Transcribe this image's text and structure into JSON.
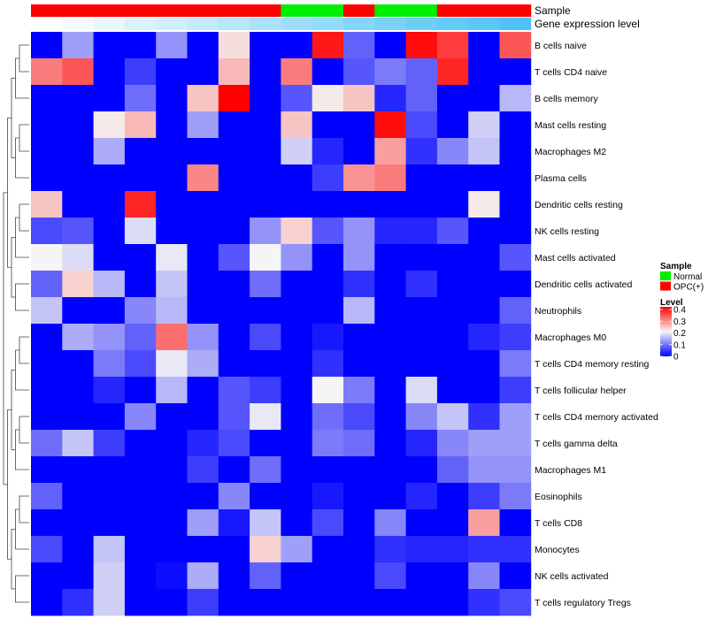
{
  "chart_data": {
    "type": "heatmap",
    "annotation_tracks": [
      {
        "name": "Sample",
        "values": [
          "OPC(+)",
          "OPC(+)",
          "OPC(+)",
          "OPC(+)",
          "OPC(+)",
          "OPC(+)",
          "OPC(+)",
          "OPC(+)",
          "Normal",
          "Normal",
          "OPC(+)",
          "Normal",
          "Normal",
          "OPC(+)",
          "OPC(+)",
          "OPC(+)"
        ]
      },
      {
        "name": "Gene expression level",
        "values": [
          0.0,
          0.02,
          0.04,
          0.07,
          0.09,
          0.11,
          0.14,
          0.16,
          0.18,
          0.2,
          0.23,
          0.25,
          0.27,
          0.29,
          0.31,
          0.33
        ]
      }
    ],
    "rows": [
      "B cells naive",
      "T cells CD4 naive",
      "B cells memory",
      "Mast cells resting",
      "Macrophages M2",
      "Plasma cells",
      "Dendritic cells resting",
      "NK cells resting",
      "Mast cells activated",
      "Dendritic cells activated",
      "Neutrophils",
      "Macrophages M0",
      "T cells CD4 memory resting",
      "T cells follicular helper",
      "T cells CD4 memory activated",
      "T cells gamma delta",
      "Macrophages M1",
      "Eosinophils",
      "T cells CD8",
      "Monocytes",
      "NK cells activated",
      "T cells regulatory  Tregs"
    ],
    "columns": 16,
    "values": [
      [
        0.0,
        0.13,
        0.0,
        0.0,
        0.12,
        0.0,
        0.22,
        0.0,
        0.0,
        0.38,
        0.08,
        0.0,
        0.39,
        0.35,
        0.0,
        0.33
      ],
      [
        0.3,
        0.33,
        0.0,
        0.05,
        0.0,
        0.0,
        0.25,
        0.0,
        0.3,
        0.0,
        0.07,
        0.1,
        0.08,
        0.37,
        0.0,
        0.0
      ],
      [
        0.0,
        0.0,
        0.0,
        0.09,
        0.0,
        0.24,
        0.4,
        0.0,
        0.07,
        0.21,
        0.24,
        0.03,
        0.08,
        0.0,
        0.0,
        0.15
      ],
      [
        0.0,
        0.0,
        0.21,
        0.25,
        0.0,
        0.13,
        0.0,
        0.0,
        0.24,
        0.0,
        0.0,
        0.39,
        0.06,
        0.0,
        0.17,
        0.0
      ],
      [
        0.0,
        0.0,
        0.14,
        0.0,
        0.0,
        0.0,
        0.0,
        0.0,
        0.17,
        0.03,
        0.0,
        0.27,
        0.04,
        0.11,
        0.16,
        0.0
      ],
      [
        0.0,
        0.0,
        0.0,
        0.0,
        0.0,
        0.29,
        0.0,
        0.0,
        0.0,
        0.05,
        0.28,
        0.3,
        0.0,
        0.0,
        0.0,
        0.0
      ],
      [
        0.24,
        0.0,
        0.0,
        0.37,
        0.0,
        0.0,
        0.0,
        0.0,
        0.0,
        0.0,
        0.0,
        0.0,
        0.0,
        0.0,
        0.21,
        0.0
      ],
      [
        0.06,
        0.07,
        0.0,
        0.18,
        0.0,
        0.0,
        0.0,
        0.12,
        0.23,
        0.07,
        0.12,
        0.03,
        0.03,
        0.07,
        0.0,
        0.0
      ],
      [
        0.2,
        0.18,
        0.0,
        0.0,
        0.19,
        0.0,
        0.07,
        0.2,
        0.12,
        0.0,
        0.12,
        0.0,
        0.0,
        0.0,
        0.0,
        0.07
      ],
      [
        0.08,
        0.23,
        0.15,
        0.0,
        0.16,
        0.0,
        0.0,
        0.09,
        0.0,
        0.0,
        0.04,
        0.0,
        0.04,
        0.0,
        0.0,
        0.0
      ],
      [
        0.16,
        0.0,
        0.0,
        0.11,
        0.15,
        0.0,
        0.0,
        0.0,
        0.0,
        0.0,
        0.15,
        0.0,
        0.0,
        0.0,
        0.0,
        0.08
      ],
      [
        0.0,
        0.14,
        0.12,
        0.08,
        0.31,
        0.12,
        0.0,
        0.06,
        0.0,
        0.02,
        0.0,
        0.0,
        0.0,
        0.0,
        0.03,
        0.05
      ],
      [
        0.0,
        0.0,
        0.1,
        0.06,
        0.19,
        0.14,
        0.0,
        0.0,
        0.0,
        0.04,
        0.0,
        0.0,
        0.0,
        0.0,
        0.0,
        0.1
      ],
      [
        0.0,
        0.0,
        0.03,
        0.0,
        0.15,
        0.0,
        0.07,
        0.05,
        0.0,
        0.2,
        0.1,
        0.0,
        0.18,
        0.0,
        0.0,
        0.05
      ],
      [
        0.0,
        0.0,
        0.0,
        0.11,
        0.0,
        0.0,
        0.07,
        0.19,
        0.0,
        0.09,
        0.06,
        0.0,
        0.11,
        0.16,
        0.04,
        0.13
      ],
      [
        0.09,
        0.16,
        0.05,
        0.0,
        0.0,
        0.03,
        0.06,
        0.0,
        0.0,
        0.1,
        0.09,
        0.0,
        0.03,
        0.11,
        0.13,
        0.13
      ],
      [
        0.0,
        0.0,
        0.0,
        0.0,
        0.0,
        0.05,
        0.0,
        0.09,
        0.0,
        0.0,
        0.0,
        0.0,
        0.0,
        0.08,
        0.12,
        0.12
      ],
      [
        0.08,
        0.0,
        0.0,
        0.0,
        0.0,
        0.0,
        0.11,
        0.0,
        0.0,
        0.02,
        0.0,
        0.0,
        0.03,
        0.0,
        0.05,
        0.1
      ],
      [
        0.0,
        0.0,
        0.0,
        0.0,
        0.0,
        0.13,
        0.02,
        0.16,
        0.0,
        0.06,
        0.0,
        0.11,
        0.0,
        0.0,
        0.27,
        0.0
      ],
      [
        0.06,
        0.0,
        0.16,
        0.0,
        0.0,
        0.0,
        0.0,
        0.23,
        0.13,
        0.0,
        0.0,
        0.04,
        0.03,
        0.03,
        0.04,
        0.04
      ],
      [
        0.0,
        0.0,
        0.17,
        0.0,
        0.01,
        0.14,
        0.0,
        0.08,
        0.0,
        0.0,
        0.0,
        0.06,
        0.0,
        0.0,
        0.11,
        0.0
      ],
      [
        0.0,
        0.04,
        0.17,
        0.0,
        0.0,
        0.05,
        0.0,
        0.0,
        0.0,
        0.0,
        0.0,
        0.0,
        0.0,
        0.0,
        0.04,
        0.06
      ]
    ],
    "color_scale": {
      "min": 0,
      "max": 0.4,
      "stops": [
        {
          "value": 0,
          "color": "#0000ff"
        },
        {
          "value": 0.2,
          "color": "#f5f5f5"
        },
        {
          "value": 0.4,
          "color": "#ff0000"
        }
      ]
    },
    "legend": {
      "placement": "right",
      "sample": {
        "title": "Sample",
        "entries": [
          {
            "label": "Normal",
            "color": "#00ee00"
          },
          {
            "label": "OPC(+)",
            "color": "#ff0000"
          }
        ]
      },
      "level": {
        "title": "Level",
        "ticks": [
          "0.4",
          "0.3",
          "0.2",
          "0.1",
          "0"
        ]
      }
    },
    "annotation_colors": {
      "Normal": "#00ee00",
      "OPC(+)": "#ff0000",
      "expression_low": "#ffffff",
      "expression_high": "#4fc3f7"
    },
    "row_dendrogram": true
  }
}
